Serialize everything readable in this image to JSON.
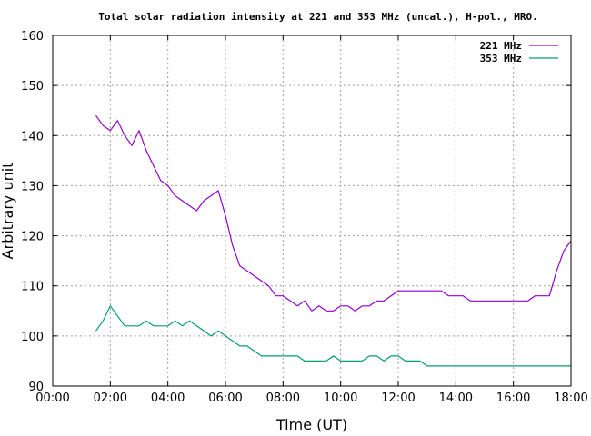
{
  "chart_data": {
    "type": "line",
    "title": "Total solar radiation intensity at 221 and 353 MHz (uncal.), H-pol., MRO.",
    "xlabel": "Time (UT)",
    "ylabel": "Arbitrary unit",
    "xlim": [
      0,
      18
    ],
    "ylim": [
      90,
      160
    ],
    "xtick_labels": [
      "00:00",
      "02:00",
      "04:00",
      "06:00",
      "08:00",
      "10:00",
      "12:00",
      "14:00",
      "16:00",
      "18:00"
    ],
    "ytick_labels": [
      "90",
      "100",
      "110",
      "120",
      "130",
      "140",
      "150",
      "160"
    ],
    "grid": true,
    "legend_position": "top-right",
    "series": [
      {
        "name": "221 MHz",
        "color": "#9400d3",
        "x": [
          1.5,
          1.75,
          2.0,
          2.25,
          2.5,
          2.75,
          3.0,
          3.25,
          3.5,
          3.75,
          4.0,
          4.25,
          4.5,
          4.75,
          5.0,
          5.25,
          5.5,
          5.75,
          6.0,
          6.25,
          6.5,
          6.75,
          7.0,
          7.25,
          7.5,
          7.75,
          8.0,
          8.25,
          8.5,
          8.75,
          9.0,
          9.25,
          9.5,
          9.75,
          10.0,
          10.25,
          10.5,
          10.75,
          11.0,
          11.25,
          11.5,
          11.75,
          12.0,
          12.25,
          12.5,
          12.75,
          13.0,
          13.25,
          13.5,
          13.75,
          14.0,
          14.25,
          14.5,
          14.75,
          15.0,
          15.25,
          15.5,
          15.75,
          16.0,
          16.25,
          16.5,
          16.75,
          17.0,
          17.25,
          17.5,
          17.75,
          18.0
        ],
        "values": [
          144,
          142,
          141,
          143,
          140,
          138,
          141,
          137,
          134,
          131,
          130,
          128,
          127,
          126,
          125,
          127,
          128,
          129,
          124,
          118,
          114,
          113,
          112,
          111,
          110,
          108,
          108,
          107,
          106,
          107,
          105,
          106,
          105,
          105,
          106,
          106,
          105,
          106,
          106,
          107,
          107,
          108,
          109,
          109,
          109,
          109,
          109,
          109,
          109,
          108,
          108,
          108,
          107,
          107,
          107,
          107,
          107,
          107,
          107,
          107,
          107,
          108,
          108,
          108,
          113,
          117,
          119
        ]
      },
      {
        "name": "353 MHz",
        "color": "#009e73",
        "x": [
          1.5,
          1.75,
          2.0,
          2.25,
          2.5,
          2.75,
          3.0,
          3.25,
          3.5,
          3.75,
          4.0,
          4.25,
          4.5,
          4.75,
          5.0,
          5.25,
          5.5,
          5.75,
          6.0,
          6.25,
          6.5,
          6.75,
          7.0,
          7.25,
          7.5,
          7.75,
          8.0,
          8.25,
          8.5,
          8.75,
          9.0,
          9.25,
          9.5,
          9.75,
          10.0,
          10.25,
          10.5,
          10.75,
          11.0,
          11.25,
          11.5,
          11.75,
          12.0,
          12.25,
          12.5,
          12.75,
          13.0,
          13.25,
          13.5,
          13.75,
          14.0,
          14.25,
          14.5,
          14.75,
          15.0,
          15.25,
          15.5,
          15.75,
          16.0,
          16.25,
          16.5,
          16.75,
          17.0,
          17.25,
          17.5,
          17.75,
          18.0
        ],
        "values": [
          101,
          103,
          106,
          104,
          102,
          102,
          102,
          103,
          102,
          102,
          102,
          103,
          102,
          103,
          102,
          101,
          100,
          101,
          100,
          99,
          98,
          98,
          97,
          96,
          96,
          96,
          96,
          96,
          96,
          95,
          95,
          95,
          95,
          96,
          95,
          95,
          95,
          95,
          96,
          96,
          95,
          96,
          96,
          95,
          95,
          95,
          94,
          94,
          94,
          94,
          94,
          94,
          94,
          94,
          94,
          94,
          94,
          94,
          94,
          94,
          94,
          94,
          94,
          94,
          94,
          94,
          94
        ]
      }
    ]
  }
}
